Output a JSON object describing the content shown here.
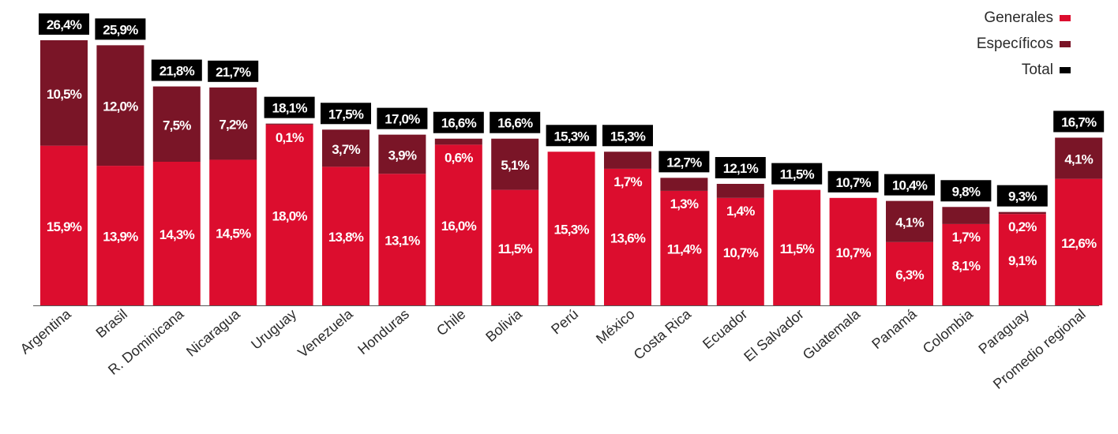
{
  "chart_data": {
    "type": "bar",
    "stacked": true,
    "categories": [
      "Argentina",
      "Brasil",
      "R. Dominicana",
      "Nicaragua",
      "Uruguay",
      "Venezuela",
      "Honduras",
      "Chile",
      "Bolivia",
      "Perú",
      "México",
      "Costa Rica",
      "Ecuador",
      "El Salvador",
      "Guatemala",
      "Panamá",
      "Colombia",
      "Paraguay",
      "Promedio regional"
    ],
    "series": [
      {
        "name": "Generales",
        "color": "#dc0d2e",
        "values": [
          15.9,
          13.9,
          14.3,
          14.5,
          18.0,
          13.8,
          13.1,
          16.0,
          11.5,
          15.3,
          13.6,
          11.4,
          10.7,
          11.5,
          10.7,
          6.3,
          8.1,
          9.1,
          12.6
        ],
        "labels": [
          "15,9%",
          "13,9%",
          "14,3%",
          "14,5%",
          "18,0%",
          "13,8%",
          "13,1%",
          "16,0%",
          "11,5%",
          "15,3%",
          "13,6%",
          "11,4%",
          "10,7%",
          "11,5%",
          "10,7%",
          "6,3%",
          "8,1%",
          "9,1%",
          "12,6%"
        ]
      },
      {
        "name": "Específicos",
        "color": "#7a1527",
        "values": [
          10.5,
          12.0,
          7.5,
          7.2,
          0.1,
          3.7,
          3.9,
          0.6,
          5.1,
          0,
          1.7,
          1.3,
          1.4,
          0,
          0,
          4.1,
          1.7,
          0.2,
          4.1
        ],
        "labels": [
          "10,5%",
          "12,0%",
          "7,5%",
          "7,2%",
          "0,1%",
          "3,7%",
          "3,9%",
          "0,6%",
          "5,1%",
          "",
          "1,7%",
          "1,3%",
          "1,4%",
          "",
          "",
          "4,1%",
          "1,7%",
          "0,2%",
          "4,1%"
        ]
      },
      {
        "name": "Total",
        "color": "#000000",
        "values": [
          26.4,
          25.9,
          21.8,
          21.7,
          18.1,
          17.5,
          17.0,
          16.6,
          16.6,
          15.3,
          15.3,
          12.7,
          12.1,
          11.5,
          10.7,
          10.4,
          9.8,
          9.3,
          16.7
        ],
        "labels": [
          "26,4%",
          "25,9%",
          "21,8%",
          "21,7%",
          "18,1%",
          "17,5%",
          "17,0%",
          "16,6%",
          "16,6%",
          "15,3%",
          "15,3%",
          "12,7%",
          "12,1%",
          "11,5%",
          "10,7%",
          "10,4%",
          "9,8%",
          "9,3%",
          "16,7%"
        ]
      }
    ],
    "ylim": [
      0,
      26.4
    ],
    "grid": false,
    "legend_position": "top-right"
  }
}
